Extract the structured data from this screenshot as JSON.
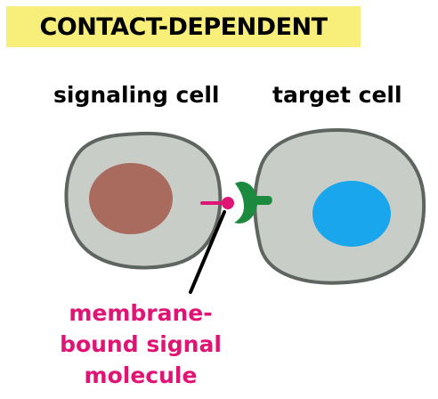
{
  "title": "CONTACT-DEPENDENT",
  "labels": {
    "signaling_cell": "signaling cell",
    "target_cell": "target cell",
    "molecule_line1": "membrane-",
    "molecule_line2": "bound signal",
    "molecule_line3": "molecule"
  },
  "colors": {
    "title_background": "#f8ef7a",
    "cell_fill": "#c9cdc8",
    "cell_outline": "#5e6560",
    "signaling_nucleus": "#a86b5d",
    "target_nucleus": "#1aa6ec",
    "receptor": "#1b8a3e",
    "signal_molecule": "#e01474"
  }
}
